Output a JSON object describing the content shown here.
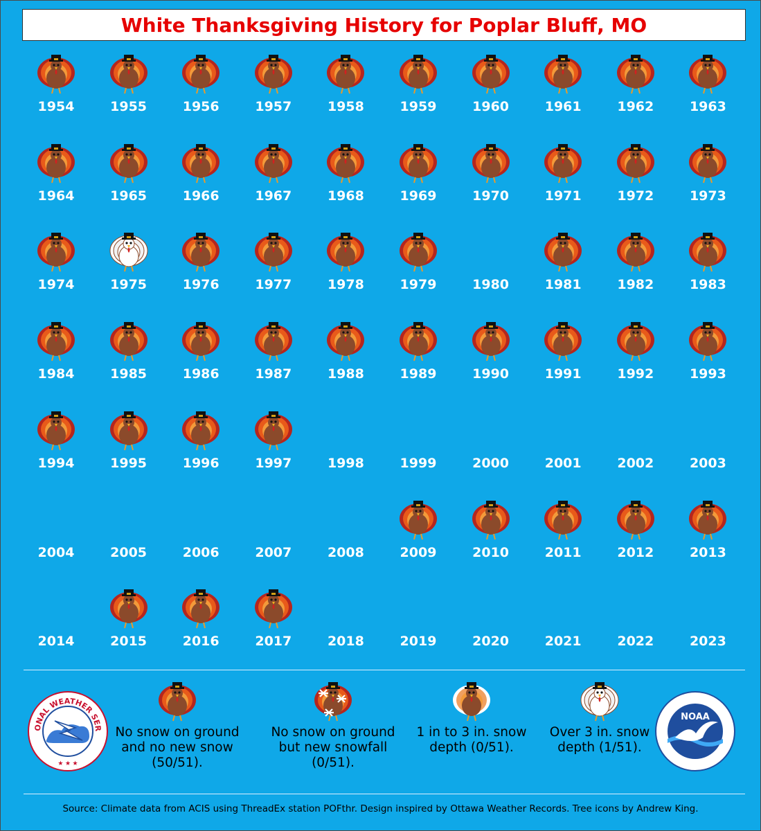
{
  "title": "White Thanksgiving History for Poplar Bluff, MO",
  "years": [
    {
      "year": "1954",
      "icon": "turkey"
    },
    {
      "year": "1955",
      "icon": "turkey"
    },
    {
      "year": "1956",
      "icon": "turkey"
    },
    {
      "year": "1957",
      "icon": "turkey"
    },
    {
      "year": "1958",
      "icon": "turkey"
    },
    {
      "year": "1959",
      "icon": "turkey"
    },
    {
      "year": "1960",
      "icon": "turkey"
    },
    {
      "year": "1961",
      "icon": "turkey"
    },
    {
      "year": "1962",
      "icon": "turkey"
    },
    {
      "year": "1963",
      "icon": "turkey"
    },
    {
      "year": "1964",
      "icon": "turkey"
    },
    {
      "year": "1965",
      "icon": "turkey"
    },
    {
      "year": "1966",
      "icon": "turkey"
    },
    {
      "year": "1967",
      "icon": "turkey"
    },
    {
      "year": "1968",
      "icon": "turkey"
    },
    {
      "year": "1969",
      "icon": "turkey"
    },
    {
      "year": "1970",
      "icon": "turkey"
    },
    {
      "year": "1971",
      "icon": "turkey"
    },
    {
      "year": "1972",
      "icon": "turkey"
    },
    {
      "year": "1973",
      "icon": "turkey"
    },
    {
      "year": "1974",
      "icon": "turkey"
    },
    {
      "year": "1975",
      "icon": "white-turkey"
    },
    {
      "year": "1976",
      "icon": "turkey"
    },
    {
      "year": "1977",
      "icon": "turkey"
    },
    {
      "year": "1978",
      "icon": "turkey"
    },
    {
      "year": "1979",
      "icon": "turkey"
    },
    {
      "year": "1980",
      "icon": ""
    },
    {
      "year": "1981",
      "icon": "turkey"
    },
    {
      "year": "1982",
      "icon": "turkey"
    },
    {
      "year": "1983",
      "icon": "turkey"
    },
    {
      "year": "1984",
      "icon": "turkey"
    },
    {
      "year": "1985",
      "icon": "turkey"
    },
    {
      "year": "1986",
      "icon": "turkey"
    },
    {
      "year": "1987",
      "icon": "turkey"
    },
    {
      "year": "1988",
      "icon": "turkey"
    },
    {
      "year": "1989",
      "icon": "turkey"
    },
    {
      "year": "1990",
      "icon": "turkey"
    },
    {
      "year": "1991",
      "icon": "turkey"
    },
    {
      "year": "1992",
      "icon": "turkey"
    },
    {
      "year": "1993",
      "icon": "turkey"
    },
    {
      "year": "1994",
      "icon": "turkey"
    },
    {
      "year": "1995",
      "icon": "turkey"
    },
    {
      "year": "1996",
      "icon": "turkey"
    },
    {
      "year": "1997",
      "icon": "turkey"
    },
    {
      "year": "1998",
      "icon": ""
    },
    {
      "year": "1999",
      "icon": ""
    },
    {
      "year": "2000",
      "icon": ""
    },
    {
      "year": "2001",
      "icon": ""
    },
    {
      "year": "2002",
      "icon": ""
    },
    {
      "year": "2003",
      "icon": ""
    },
    {
      "year": "2004",
      "icon": ""
    },
    {
      "year": "2005",
      "icon": ""
    },
    {
      "year": "2006",
      "icon": ""
    },
    {
      "year": "2007",
      "icon": ""
    },
    {
      "year": "2008",
      "icon": ""
    },
    {
      "year": "2009",
      "icon": "turkey"
    },
    {
      "year": "2010",
      "icon": "turkey"
    },
    {
      "year": "2011",
      "icon": "turkey"
    },
    {
      "year": "2012",
      "icon": "turkey"
    },
    {
      "year": "2013",
      "icon": "turkey"
    },
    {
      "year": "2014",
      "icon": ""
    },
    {
      "year": "2015",
      "icon": "turkey"
    },
    {
      "year": "2016",
      "icon": "turkey"
    },
    {
      "year": "2017",
      "icon": "turkey"
    },
    {
      "year": "2018",
      "icon": ""
    },
    {
      "year": "2019",
      "icon": ""
    },
    {
      "year": "2020",
      "icon": ""
    },
    {
      "year": "2021",
      "icon": ""
    },
    {
      "year": "2022",
      "icon": ""
    },
    {
      "year": "2023",
      "icon": ""
    }
  ],
  "legend": [
    {
      "icon": "turkey",
      "text": "No snow on ground and no new snow (50/51)."
    },
    {
      "icon": "snowflake-turkey",
      "text": "No snow on ground but new snowfall (0/51)."
    },
    {
      "icon": "partial-white-turkey",
      "text": "1 in to 3 in. snow depth (0/51)."
    },
    {
      "icon": "white-turkey",
      "text": "Over 3 in. snow depth (1/51)."
    }
  ],
  "logos": {
    "left": {
      "name": "nws-logo",
      "text": "NATIONAL WEATHER SERVICE"
    },
    "right": {
      "name": "noaa-logo",
      "text": "NOAA"
    }
  },
  "source": "Source: Climate data from ACIS using ThreadEx station POFthr. Design inspired by Ottawa Weather Records. Tree icons by Andrew King.",
  "colors": {
    "background": "#0fa8e8",
    "title": "#e60000",
    "year_text": "#ffffff",
    "turkey_body": "#8b4a2b",
    "turkey_feathers": "#e85a1a"
  }
}
